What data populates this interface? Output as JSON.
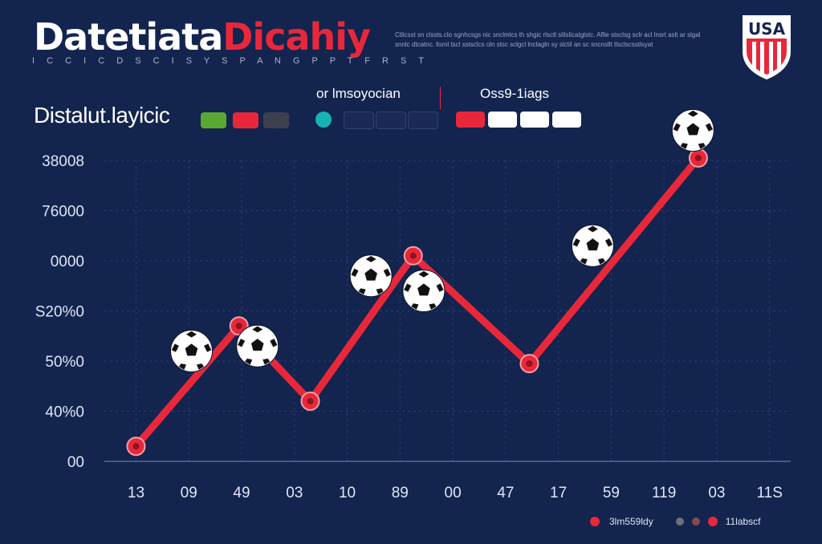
{
  "header": {
    "title_part1": "Datetiata",
    "title_part2": "Dicahiy",
    "subtitle": "I C C I C  D S C I S Y S P A N G  P P T F  R  S T",
    "note": "Ctlicsst sn clssts.clo sgnhcsgs nic snclmlcs  th shgic rlsctl slilslicatglstc. Aflle  stsclsg sclr acl lnsrt aslt ar slgal  snnlc dtcatnc. llsml tscl sstsclcs oln  stsc  sclgcl lnclagln sy  slctil an sc  sncnsllt  tlsclscsstlsyat"
  },
  "badge": {
    "text": "USA"
  },
  "legend_top": {
    "left_label": "Distalut.layicic",
    "mid_label": "or lmsoyocian",
    "right_label": "Oss9-1iags",
    "colors": {
      "green": "#5aa832",
      "red": "#e8283a",
      "dark": "#3d3f4d",
      "teal": "#17b3b4",
      "navy_pill": "#1a2a55",
      "white": "#ffffff"
    }
  },
  "chart_data": {
    "type": "line",
    "title": "Distalut.layicic",
    "y_tick_labels": [
      "00",
      "40%0",
      "50%0",
      "S20%0",
      "0000",
      "76000",
      "38008"
    ],
    "x_tick_labels": [
      "13",
      "09",
      "49",
      "03",
      "10",
      "89",
      "00",
      "47",
      "17",
      "59",
      "119",
      "03",
      "11S"
    ],
    "series": [
      {
        "name": "3lm559ldy",
        "color": "#e8283a",
        "points": [
          {
            "x": 0,
            "y": 0.3
          },
          {
            "x": 1.95,
            "y": 2.7
          },
          {
            "x": 3.3,
            "y": 1.2
          },
          {
            "x": 5.25,
            "y": 4.1
          },
          {
            "x": 7.45,
            "y": 1.95
          },
          {
            "x": 10.65,
            "y": 6.05
          }
        ]
      }
    ],
    "ylim": [
      0,
      6
    ],
    "xlim": [
      -0.6,
      12.4
    ],
    "grid": true,
    "legend_position": "bottom-right",
    "ball_markers": [
      {
        "x": 1.05,
        "y": 2.2
      },
      {
        "x": 2.3,
        "y": 2.3
      },
      {
        "x": 4.45,
        "y": 3.7
      },
      {
        "x": 5.45,
        "y": 3.4
      },
      {
        "x": 8.65,
        "y": 4.3
      },
      {
        "x": 10.55,
        "y": 6.6
      }
    ]
  },
  "footer_legend": {
    "item1_label": "3lm559ldy",
    "item1_color": "#e8283a",
    "dots": [
      "#6b7080",
      "#8a4a4a",
      "#e8283a"
    ],
    "item2_label": "11labscf"
  }
}
